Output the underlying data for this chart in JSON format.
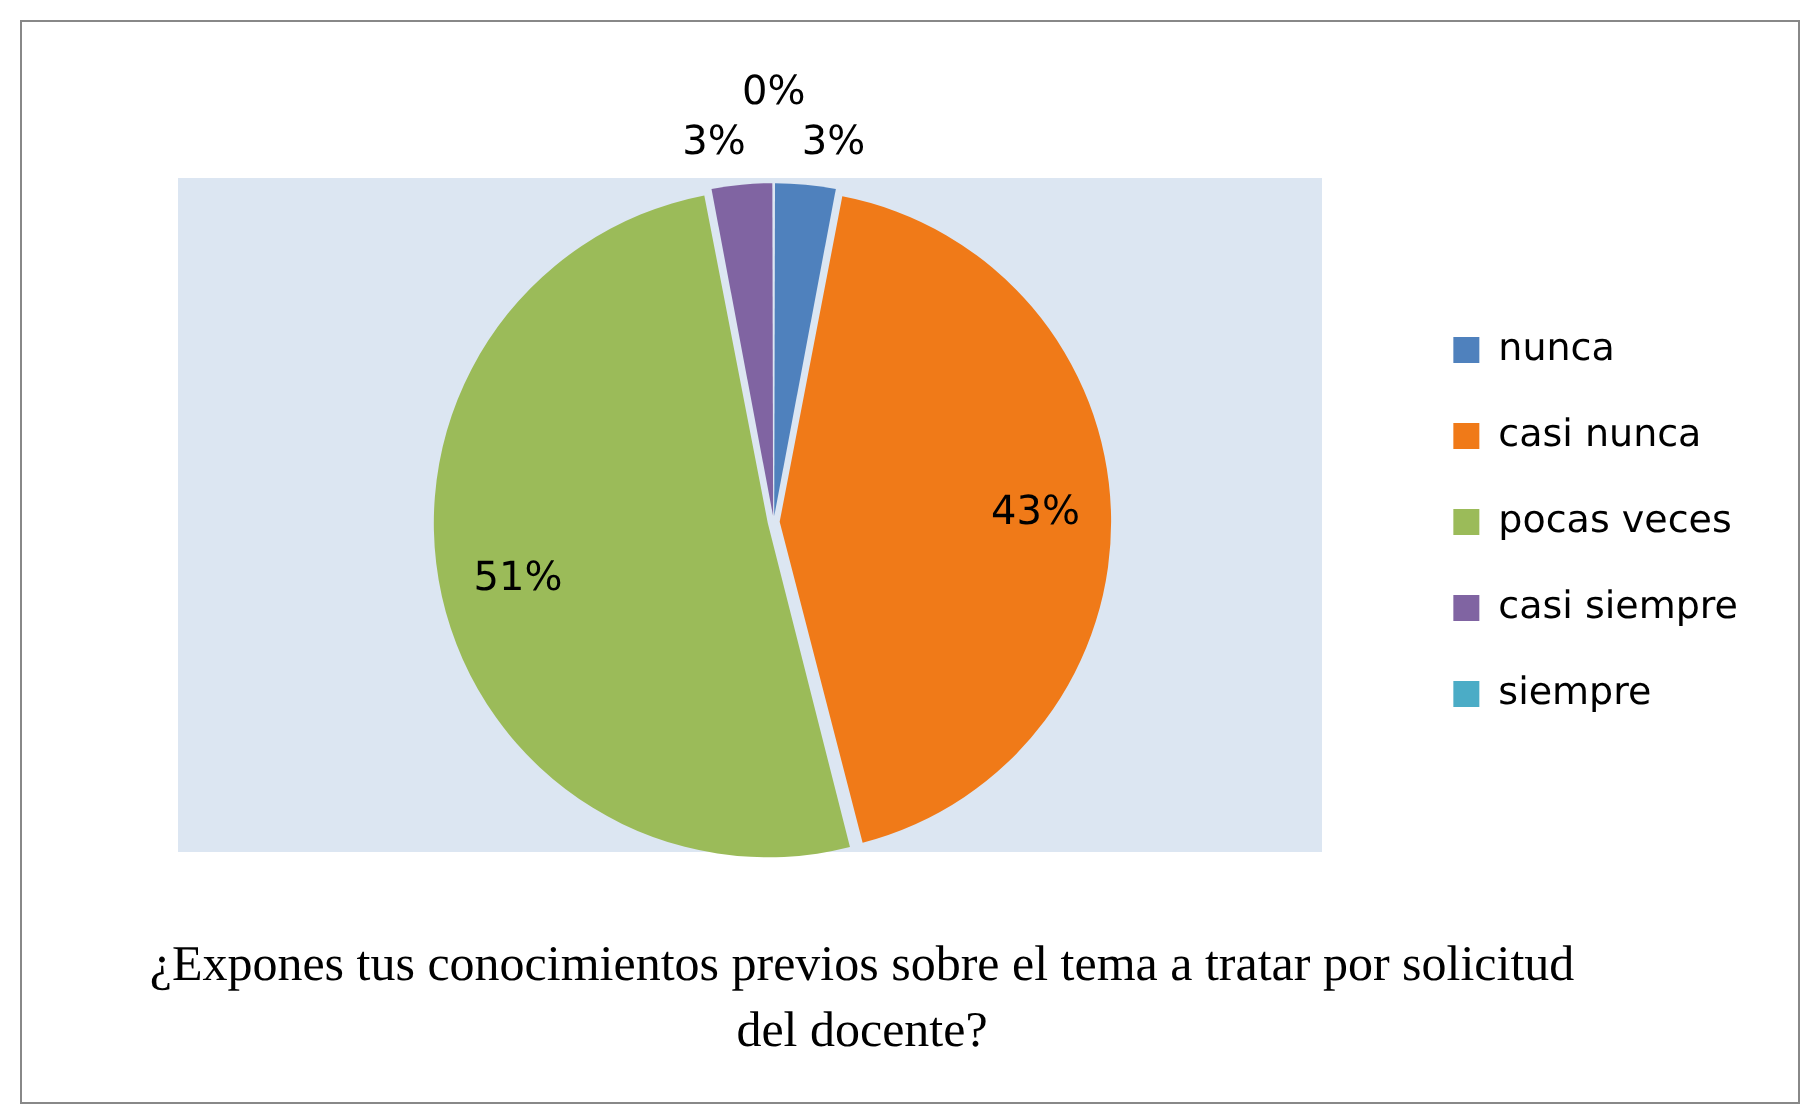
{
  "chart_data": {
    "type": "pie",
    "title": "¿Expones tus conocimientos previos sobre el tema a tratar por solicitud del docente?",
    "categories": [
      "nunca",
      "casi nunca",
      "pocas veces",
      "casi siempre",
      "siempre"
    ],
    "values": [
      3,
      43,
      51,
      3,
      0
    ],
    "colors": [
      "#4f81bd",
      "#f07a18",
      "#9bbb59",
      "#8064a2",
      "#4bacc6"
    ],
    "value_labels": [
      "3%",
      "43%",
      "51%",
      "3%",
      "0%"
    ],
    "legend": "right"
  }
}
